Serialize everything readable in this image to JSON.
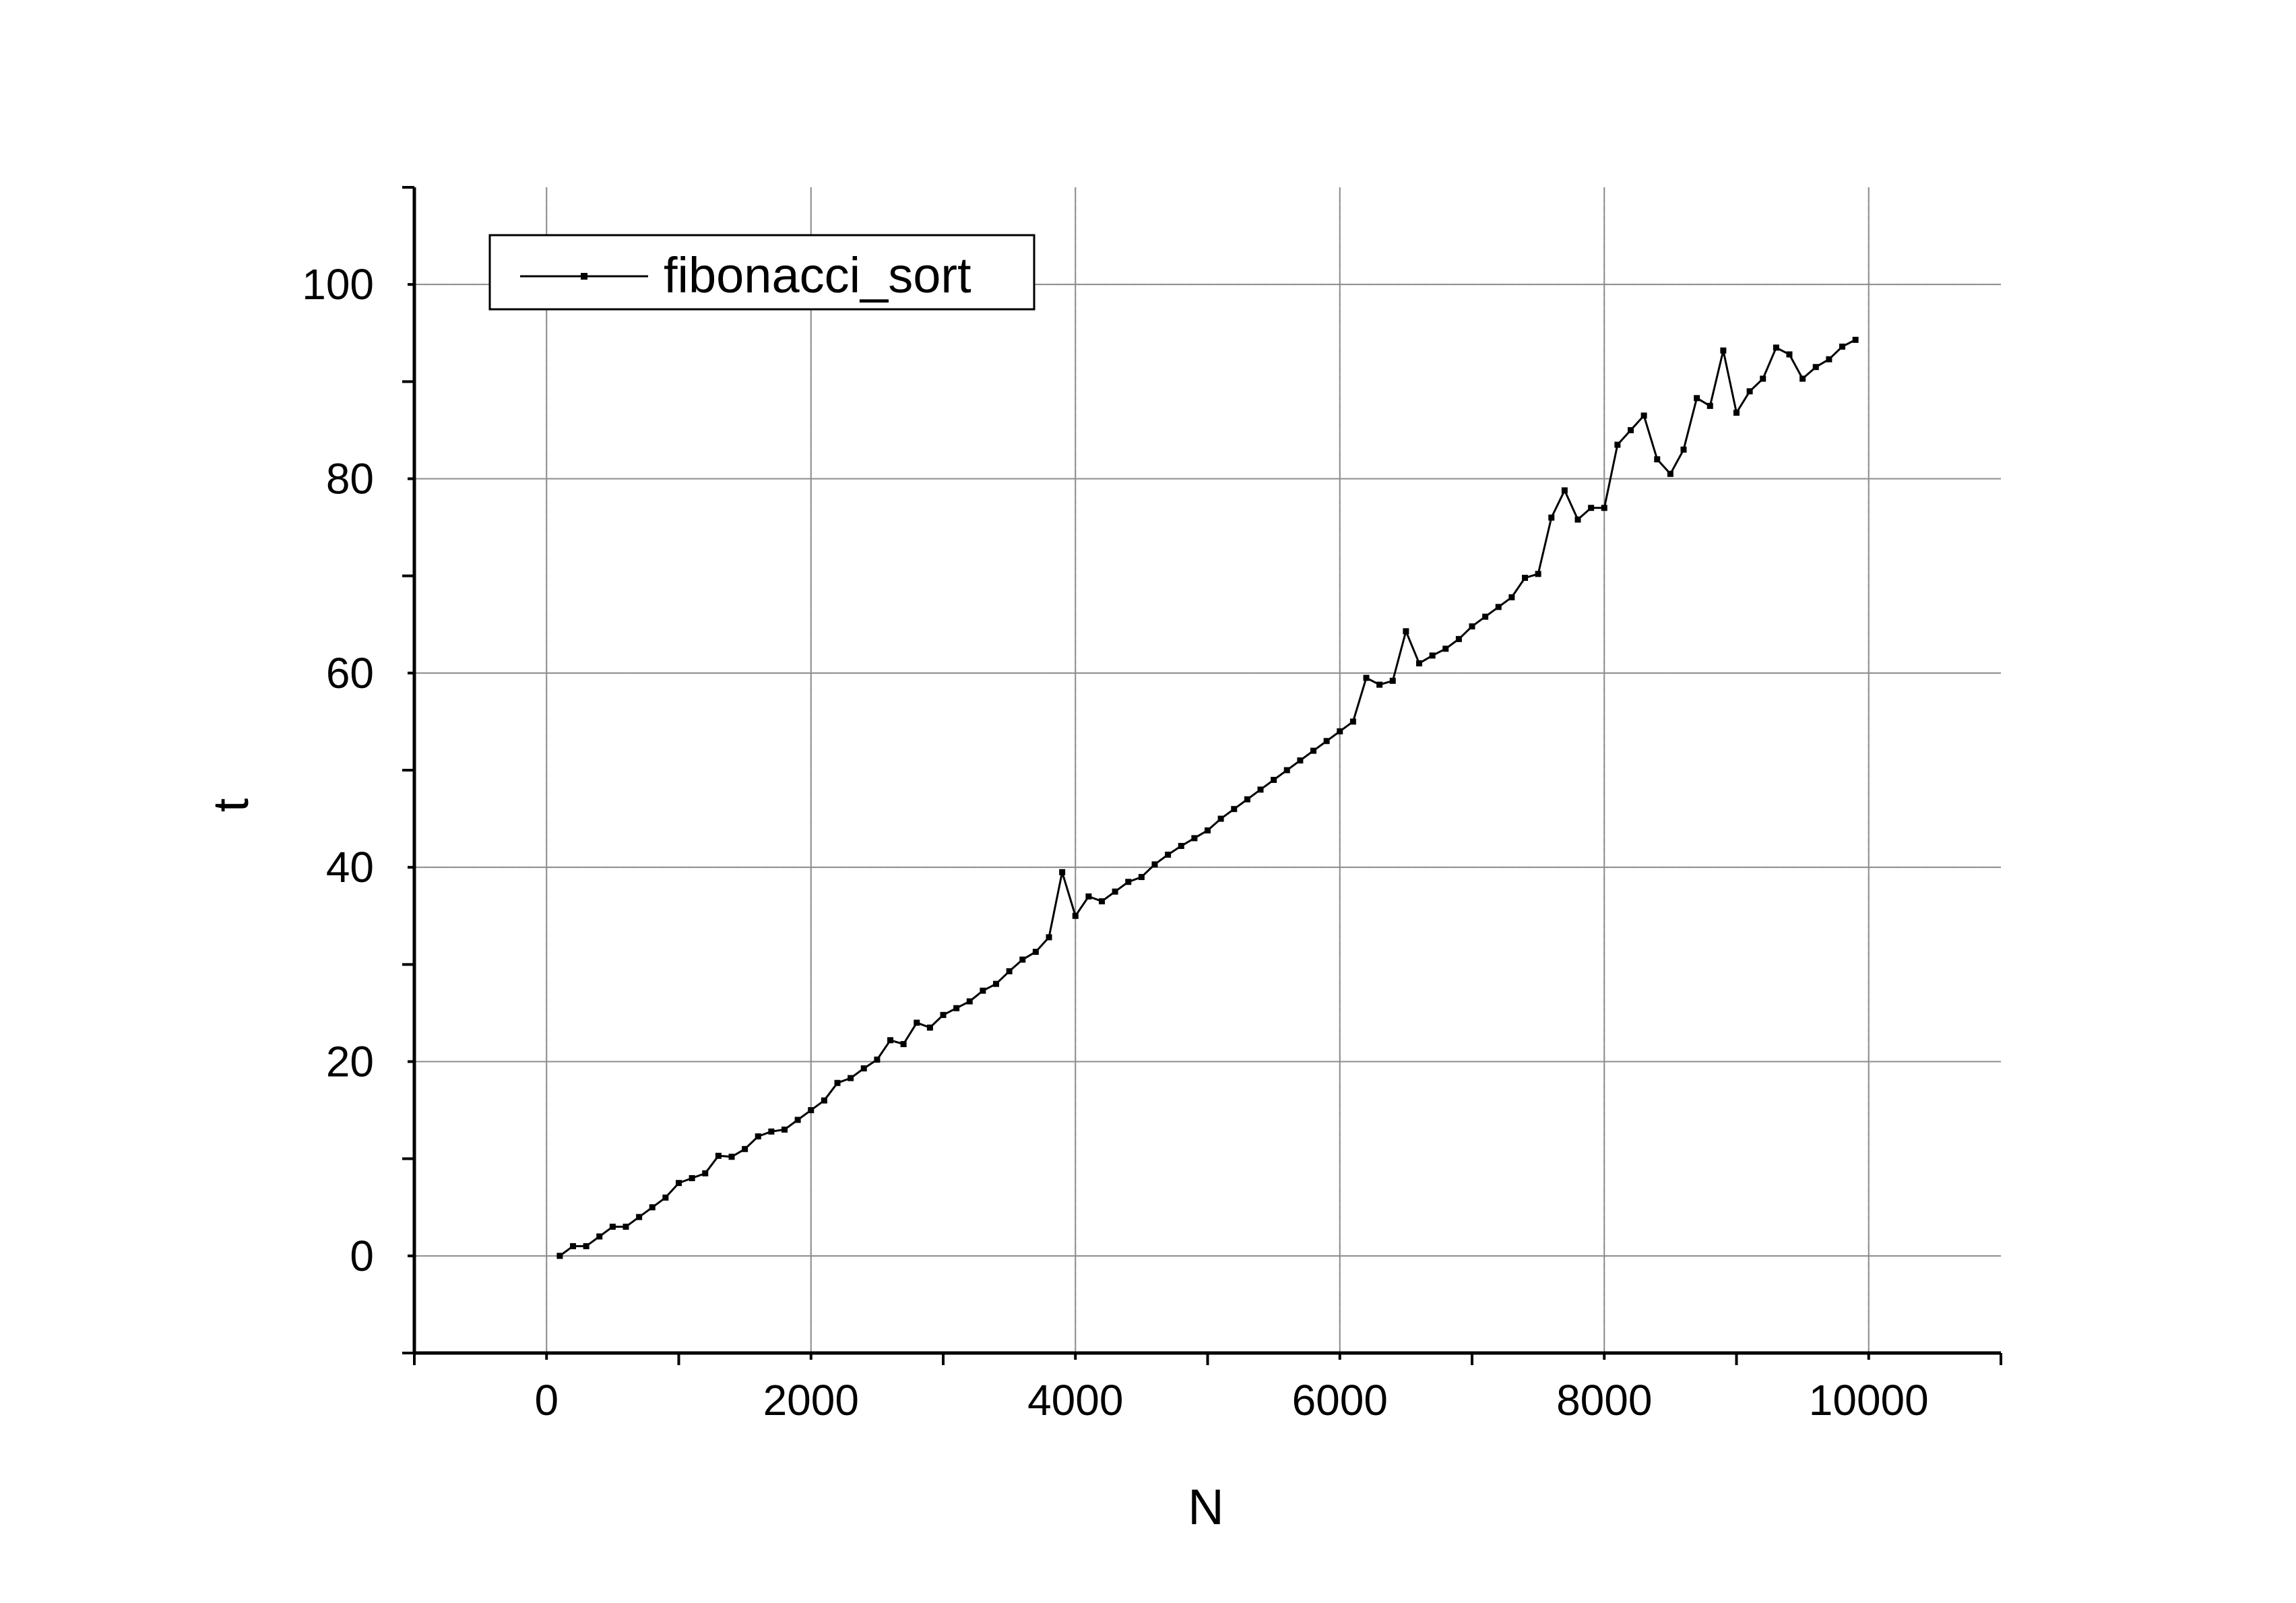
{
  "chart_data": {
    "type": "line",
    "title": "",
    "xlabel": "N",
    "ylabel": "t",
    "xlim": [
      -1000,
      11000
    ],
    "ylim": [
      -10,
      110
    ],
    "x_major_ticks": [
      0,
      2000,
      4000,
      6000,
      8000,
      10000
    ],
    "y_major_ticks": [
      0,
      20,
      40,
      60,
      80,
      100
    ],
    "x_tick_labels": [
      "0",
      "2000",
      "4000",
      "6000",
      "8000",
      "10000"
    ],
    "y_tick_labels": [
      "0",
      "20",
      "40",
      "60",
      "80",
      "100"
    ],
    "grid": true,
    "legend_position": "top-left",
    "colors": {
      "line": "#000000",
      "grid_major": "#8c8c8c",
      "grid_minor": "#cfcfcf",
      "axis": "#000000"
    },
    "series": [
      {
        "name": "fibonacci_sort",
        "x": [
          100,
          200,
          300,
          400,
          500,
          600,
          700,
          800,
          900,
          1000,
          1100,
          1200,
          1300,
          1400,
          1500,
          1600,
          1700,
          1800,
          1900,
          2000,
          2100,
          2200,
          2300,
          2400,
          2500,
          2600,
          2700,
          2800,
          2900,
          3000,
          3100,
          3200,
          3300,
          3400,
          3500,
          3600,
          3700,
          3800,
          3900,
          4000,
          4100,
          4200,
          4300,
          4400,
          4500,
          4600,
          4700,
          4800,
          4900,
          5000,
          5100,
          5200,
          5300,
          5400,
          5500,
          5600,
          5700,
          5800,
          5900,
          6000,
          6100,
          6200,
          6300,
          6400,
          6500,
          6600,
          6700,
          6800,
          6900,
          7000,
          7100,
          7200,
          7300,
          7400,
          7500,
          7600,
          7700,
          7800,
          7900,
          8000,
          8100,
          8200,
          8300,
          8400,
          8500,
          8600,
          8700,
          8800,
          8900,
          9000,
          9100,
          9200,
          9300,
          9400,
          9500,
          9600,
          9700,
          9800,
          9900
        ],
        "y": [
          0,
          1,
          1,
          2,
          3,
          3,
          4,
          5,
          6,
          7.5,
          8,
          8.5,
          10.3,
          10.2,
          11,
          12.3,
          12.8,
          13,
          14,
          15,
          16,
          17.8,
          18.3,
          19.3,
          20.2,
          22.2,
          21.8,
          24,
          23.5,
          24.8,
          25.5,
          26.2,
          27.3,
          28,
          29.3,
          30.5,
          31.3,
          32.8,
          39.5,
          35,
          37,
          36.5,
          37.5,
          38.5,
          39,
          40.3,
          41.3,
          42.2,
          43,
          43.8,
          45,
          46,
          47,
          48,
          49,
          50,
          51,
          52,
          53,
          54,
          55,
          59.5,
          58.8,
          59.2,
          64.3,
          61,
          61.8,
          62.5,
          63.5,
          64.8,
          65.8,
          66.8,
          67.8,
          69.8,
          70.2,
          76,
          78.8,
          75.8,
          77,
          77,
          83.5,
          85,
          86.5,
          82,
          80.5,
          83,
          88.3,
          87.5,
          93.2,
          86.8,
          89,
          90.3,
          93.5,
          92.8,
          90.3,
          91.5,
          92.3,
          93.6,
          94.3
        ]
      }
    ]
  }
}
